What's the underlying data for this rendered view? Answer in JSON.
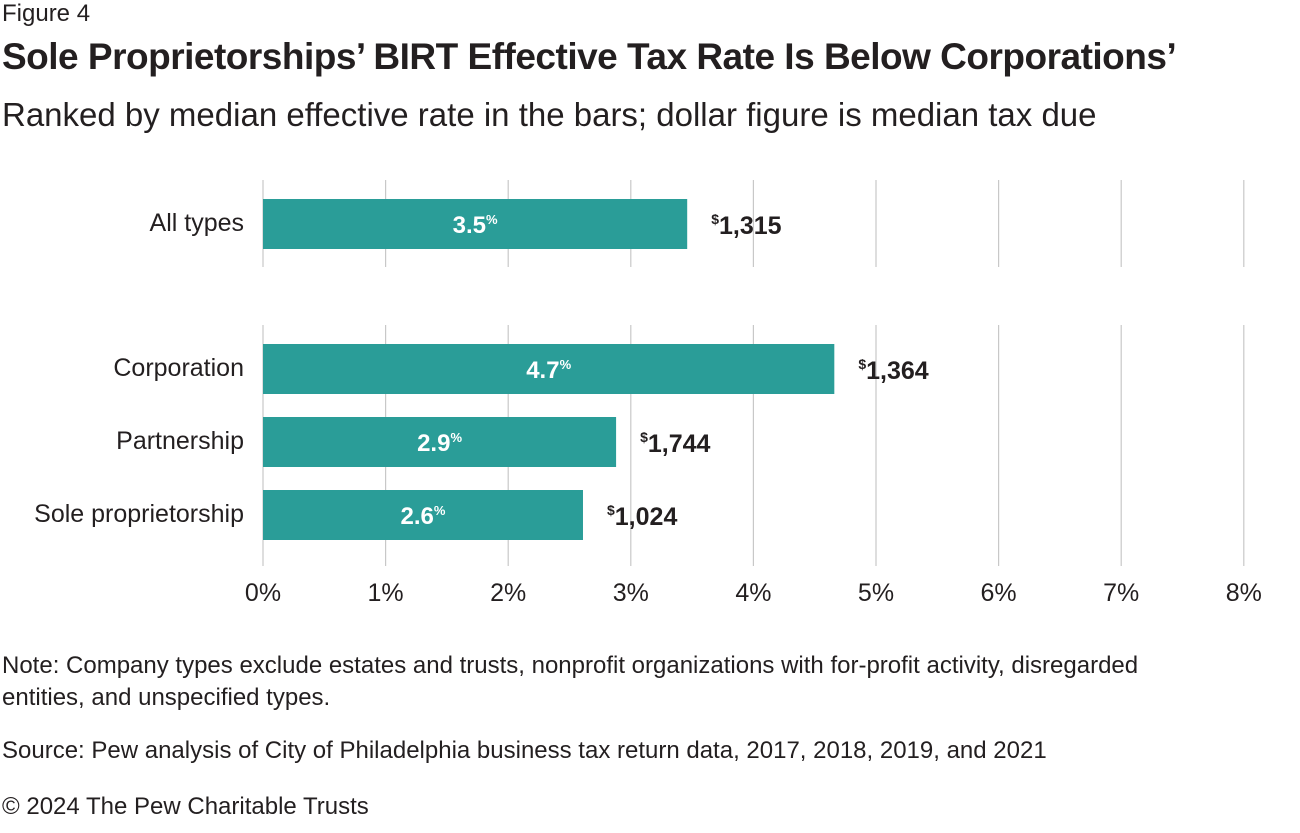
{
  "figure_label": "Figure 4",
  "title": "Sole Proprietorships’ BIRT Effective Tax Rate Is Below Corporations’",
  "subtitle": "Ranked by median effective rate in the bars; dollar figure is median tax due",
  "note": "Note: Company types exclude estates and trusts, nonprofit organizations with for-profit activity, disregarded entities, and unspecified types.",
  "source": "Source: Pew analysis of City of Philadelphia business tax return data, 2017, 2018, 2019, and 2021",
  "copyright": "© 2024 The Pew Charitable Trusts",
  "colors": {
    "bar": "#2a9d98",
    "grid": "#c8c8c8",
    "text": "#231f20",
    "bar_label": "#ffffff"
  },
  "chart_data": {
    "type": "bar",
    "orientation": "horizontal",
    "categories": [
      "All types",
      "Corporation",
      "Partnership",
      "Sole proprietorship"
    ],
    "groups": [
      [
        "All types"
      ],
      [
        "Corporation",
        "Partnership",
        "Sole proprietorship"
      ]
    ],
    "values": [
      3.46,
      4.66,
      2.88,
      2.61
    ],
    "value_labels": [
      {
        "number": "3.5",
        "suffix": "%"
      },
      {
        "number": "4.7",
        "suffix": "%"
      },
      {
        "number": "2.9",
        "suffix": "%"
      },
      {
        "number": "2.6",
        "suffix": "%"
      }
    ],
    "dollar_labels": [
      {
        "symbol": "$",
        "amount": "1,315"
      },
      {
        "symbol": "$",
        "amount": "1,364"
      },
      {
        "symbol": "$",
        "amount": "1,744"
      },
      {
        "symbol": "$",
        "amount": "1,024"
      }
    ],
    "series_name": "Median effective rate",
    "secondary_series_name": "Median tax due",
    "xlim": [
      0,
      8
    ],
    "xticks": [
      0,
      1,
      2,
      3,
      4,
      5,
      6,
      7,
      8
    ],
    "xtick_labels": [
      "0%",
      "1%",
      "2%",
      "3%",
      "4%",
      "5%",
      "6%",
      "7%",
      "8%"
    ],
    "grid": "vertical",
    "title": "Sole Proprietorships’ BIRT Effective Tax Rate Is Below Corporations’",
    "xlabel": "",
    "ylabel": ""
  }
}
